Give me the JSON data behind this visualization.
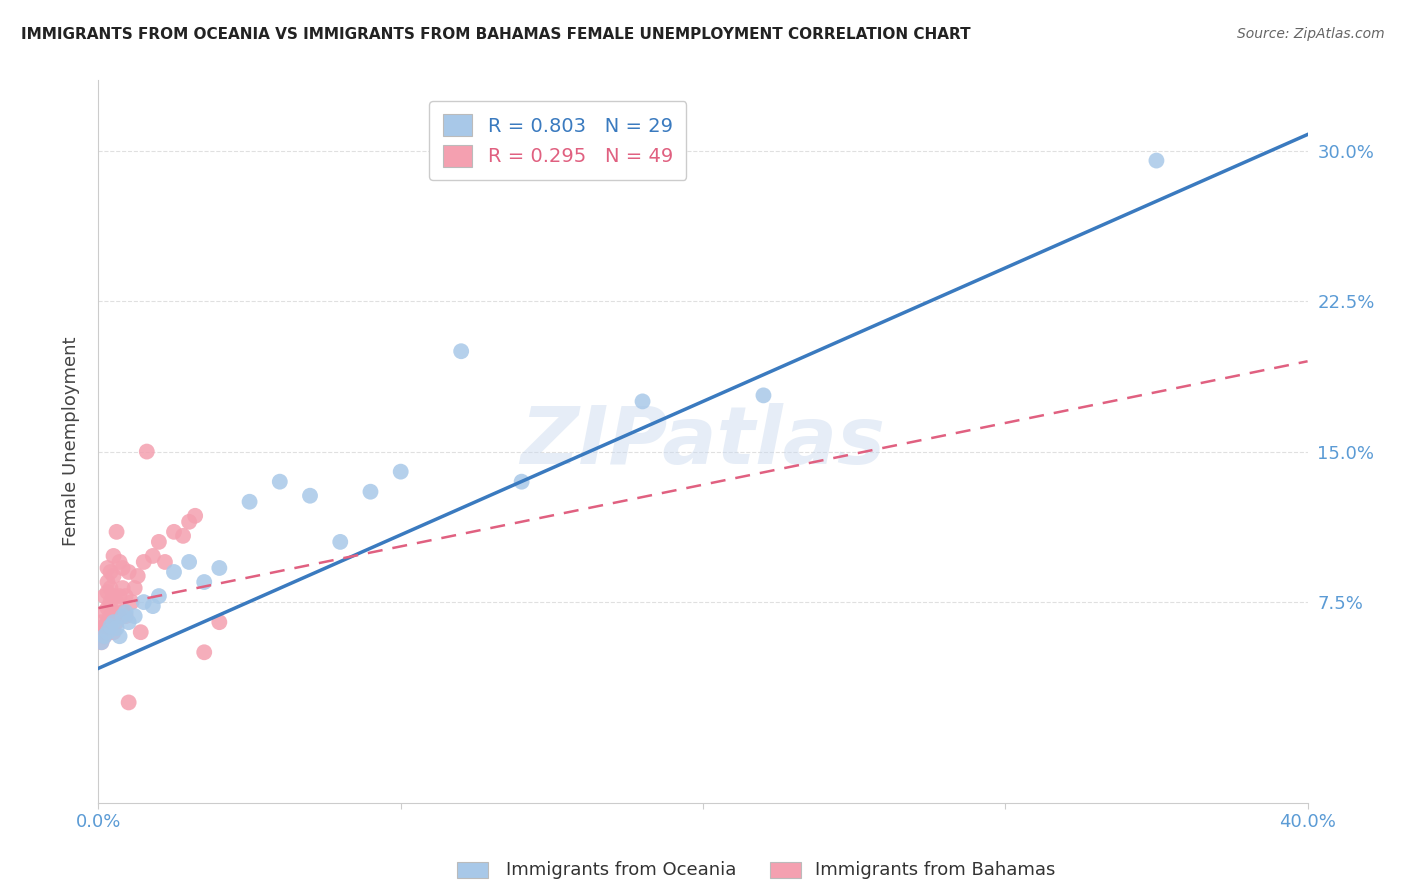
{
  "title": "IMMIGRANTS FROM OCEANIA VS IMMIGRANTS FROM BAHAMAS FEMALE UNEMPLOYMENT CORRELATION CHART",
  "source": "Source: ZipAtlas.com",
  "tick_color": "#5b9bd5",
  "ylabel": "Female Unemployment",
  "xlim": [
    0.0,
    0.4
  ],
  "ylim": [
    -0.025,
    0.335
  ],
  "xtick_positions": [
    0.0,
    0.1,
    0.2,
    0.3,
    0.4
  ],
  "xtick_labels": [
    "0.0%",
    "",
    "",
    "",
    "40.0%"
  ],
  "ytick_positions": [
    0.075,
    0.15,
    0.225,
    0.3
  ],
  "ytick_labels": [
    "7.5%",
    "15.0%",
    "22.5%",
    "30.0%"
  ],
  "background_color": "#ffffff",
  "grid_color": "#dddddd",
  "oceania_color": "#a8c8e8",
  "bahamas_color": "#f4a0b0",
  "oceania_line_color": "#3a7abf",
  "bahamas_line_color": "#e06080",
  "R_oceania": 0.803,
  "N_oceania": 29,
  "R_bahamas": 0.295,
  "N_bahamas": 49,
  "watermark_text": "ZIPatlas",
  "legend_label_oceania": "Immigrants from Oceania",
  "legend_label_bahamas": "Immigrants from Bahamas",
  "oceania_x": [
    0.001,
    0.002,
    0.003,
    0.004,
    0.005,
    0.006,
    0.007,
    0.008,
    0.009,
    0.01,
    0.012,
    0.015,
    0.018,
    0.02,
    0.025,
    0.03,
    0.035,
    0.04,
    0.05,
    0.06,
    0.07,
    0.08,
    0.09,
    0.1,
    0.12,
    0.14,
    0.18,
    0.22,
    0.35
  ],
  "oceania_y": [
    0.055,
    0.058,
    0.06,
    0.063,
    0.065,
    0.062,
    0.058,
    0.068,
    0.07,
    0.065,
    0.068,
    0.075,
    0.073,
    0.078,
    0.09,
    0.095,
    0.085,
    0.092,
    0.125,
    0.135,
    0.128,
    0.105,
    0.13,
    0.14,
    0.2,
    0.135,
    0.175,
    0.178,
    0.295
  ],
  "bahamas_x": [
    0.001,
    0.001,
    0.001,
    0.002,
    0.002,
    0.002,
    0.002,
    0.003,
    0.003,
    0.003,
    0.003,
    0.003,
    0.004,
    0.004,
    0.004,
    0.004,
    0.005,
    0.005,
    0.005,
    0.005,
    0.005,
    0.006,
    0.006,
    0.006,
    0.007,
    0.007,
    0.007,
    0.008,
    0.008,
    0.008,
    0.009,
    0.009,
    0.01,
    0.011,
    0.012,
    0.013,
    0.014,
    0.015,
    0.016,
    0.018,
    0.02,
    0.022,
    0.025,
    0.028,
    0.03,
    0.032,
    0.035,
    0.04,
    0.01
  ],
  "bahamas_y": [
    0.055,
    0.06,
    0.065,
    0.058,
    0.063,
    0.07,
    0.078,
    0.065,
    0.072,
    0.08,
    0.085,
    0.092,
    0.068,
    0.075,
    0.082,
    0.09,
    0.06,
    0.07,
    0.078,
    0.088,
    0.098,
    0.065,
    0.075,
    0.11,
    0.068,
    0.078,
    0.095,
    0.07,
    0.082,
    0.092,
    0.068,
    0.078,
    0.09,
    0.075,
    0.082,
    0.088,
    0.06,
    0.095,
    0.15,
    0.098,
    0.105,
    0.095,
    0.11,
    0.108,
    0.115,
    0.118,
    0.05,
    0.065,
    0.025
  ]
}
